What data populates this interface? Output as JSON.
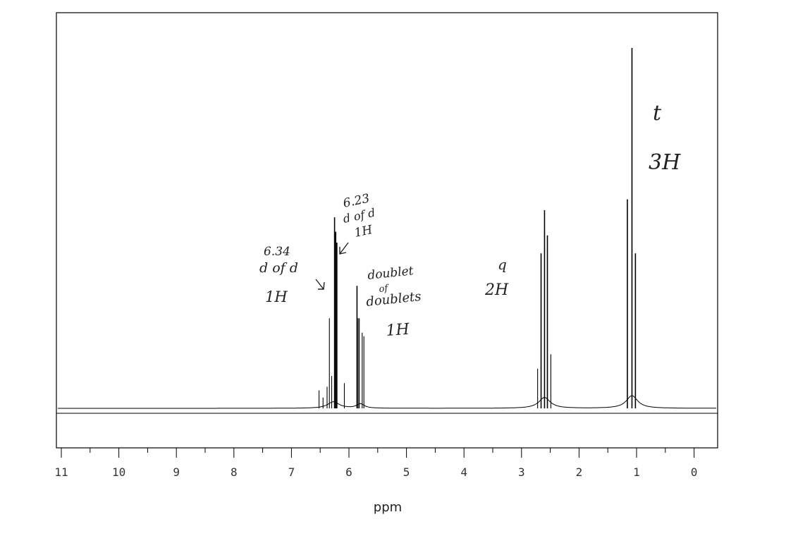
{
  "chart_data": {
    "type": "line",
    "title": "",
    "xlabel": "ppm",
    "ylabel": "",
    "x_direction": "reversed",
    "xlim": [
      11.0,
      -0.2
    ],
    "ylim": [
      0,
      1
    ],
    "x_ticks": [
      11,
      10,
      9,
      8,
      7,
      6,
      5,
      4,
      3,
      2,
      1,
      0
    ],
    "x_tick_labels": [
      "11",
      "10",
      "9",
      "8",
      "7",
      "6",
      "5",
      "4",
      "3",
      "2",
      "1",
      "0"
    ],
    "grid": false,
    "line_color": "#000000",
    "series": [
      {
        "peaks": [
          {
            "ppm": 6.52,
            "height": 0.05
          },
          {
            "ppm": 6.45,
            "height": 0.03
          },
          {
            "ppm": 6.38,
            "height": 0.06
          },
          {
            "ppm": 6.34,
            "height": 0.25
          },
          {
            "ppm": 6.3,
            "height": 0.09
          },
          {
            "ppm": 6.25,
            "height": 0.53
          },
          {
            "ppm": 6.23,
            "height": 0.49
          },
          {
            "ppm": 6.21,
            "height": 0.46
          },
          {
            "ppm": 6.08,
            "height": 0.07
          },
          {
            "ppm": 5.86,
            "height": 0.34
          },
          {
            "ppm": 5.84,
            "height": 0.25
          },
          {
            "ppm": 5.82,
            "height": 0.25
          },
          {
            "ppm": 5.77,
            "height": 0.21
          },
          {
            "ppm": 5.74,
            "height": 0.2
          },
          {
            "ppm": 2.72,
            "height": 0.11
          },
          {
            "ppm": 2.66,
            "height": 0.43
          },
          {
            "ppm": 2.6,
            "height": 0.55
          },
          {
            "ppm": 2.55,
            "height": 0.48
          },
          {
            "ppm": 2.49,
            "height": 0.15
          },
          {
            "ppm": 1.16,
            "height": 0.58
          },
          {
            "ppm": 1.08,
            "height": 1.0
          },
          {
            "ppm": 1.02,
            "height": 0.43
          }
        ]
      }
    ],
    "annotations": [
      {
        "text_lines": [
          "6.34",
          "d of d",
          "1H"
        ],
        "target_ppm": 6.34
      },
      {
        "text_lines": [
          "6.23",
          "d of d",
          "1H"
        ],
        "target_ppm": 6.23
      },
      {
        "text_lines": [
          "doublet",
          "of",
          "doublets",
          "1H"
        ],
        "target_ppm": 5.8
      },
      {
        "text_lines": [
          "q",
          "2H"
        ],
        "target_ppm": 2.6
      },
      {
        "text_lines": [
          "t",
          "3H"
        ],
        "target_ppm": 1.08
      }
    ]
  }
}
